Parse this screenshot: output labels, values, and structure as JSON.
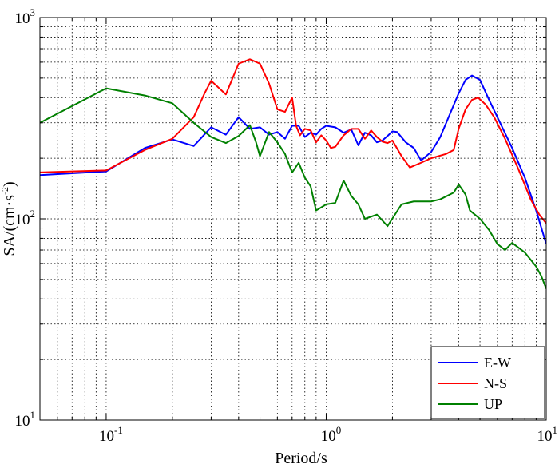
{
  "chart_data": {
    "type": "line",
    "xscale": "log",
    "yscale": "log",
    "xlim": [
      0.05,
      10
    ],
    "ylim": [
      10,
      1000
    ],
    "grid": true,
    "xlabel": "Period/s",
    "ylabel": "SA/(cm·s⁻²)",
    "ylabel_parts": {
      "prefix": "SA/(cm·s",
      "sup": "-2",
      "suffix": ")"
    },
    "xticks": [
      {
        "value": 0.1,
        "base": "10",
        "exp": "-1"
      },
      {
        "value": 1,
        "base": "10",
        "exp": "0"
      },
      {
        "value": 10,
        "base": "10",
        "exp": "1"
      }
    ],
    "yticks": [
      {
        "value": 10,
        "base": "10",
        "exp": "1"
      },
      {
        "value": 100,
        "base": "10",
        "exp": "2"
      },
      {
        "value": 1000,
        "base": "10",
        "exp": "3"
      }
    ],
    "legend_position": "bottom-right",
    "series": [
      {
        "name": "E-W",
        "color": "#0000ff",
        "points": [
          [
            0.05,
            165
          ],
          [
            0.1,
            172
          ],
          [
            0.15,
            225
          ],
          [
            0.2,
            248
          ],
          [
            0.25,
            230
          ],
          [
            0.3,
            285
          ],
          [
            0.35,
            262
          ],
          [
            0.4,
            320
          ],
          [
            0.45,
            280
          ],
          [
            0.5,
            285
          ],
          [
            0.55,
            262
          ],
          [
            0.6,
            270
          ],
          [
            0.65,
            250
          ],
          [
            0.7,
            290
          ],
          [
            0.75,
            290
          ],
          [
            0.8,
            255
          ],
          [
            0.85,
            268
          ],
          [
            0.9,
            262
          ],
          [
            0.95,
            280
          ],
          [
            1.0,
            290
          ],
          [
            1.1,
            285
          ],
          [
            1.2,
            268
          ],
          [
            1.3,
            278
          ],
          [
            1.4,
            232
          ],
          [
            1.5,
            268
          ],
          [
            1.6,
            260
          ],
          [
            1.7,
            240
          ],
          [
            1.8,
            245
          ],
          [
            1.9,
            258
          ],
          [
            2.0,
            272
          ],
          [
            2.1,
            270
          ],
          [
            2.3,
            240
          ],
          [
            2.5,
            225
          ],
          [
            2.7,
            195
          ],
          [
            3.0,
            215
          ],
          [
            3.3,
            255
          ],
          [
            3.6,
            320
          ],
          [
            4.0,
            420
          ],
          [
            4.3,
            490
          ],
          [
            4.6,
            515
          ],
          [
            5.0,
            490
          ],
          [
            5.5,
            390
          ],
          [
            6.0,
            320
          ],
          [
            7.0,
            225
          ],
          [
            8.0,
            160
          ],
          [
            9.0,
            110
          ],
          [
            10.0,
            75
          ]
        ]
      },
      {
        "name": "N-S",
        "color": "#ff0000",
        "points": [
          [
            0.05,
            170
          ],
          [
            0.1,
            174
          ],
          [
            0.15,
            220
          ],
          [
            0.2,
            250
          ],
          [
            0.25,
            320
          ],
          [
            0.28,
            420
          ],
          [
            0.3,
            485
          ],
          [
            0.35,
            415
          ],
          [
            0.4,
            590
          ],
          [
            0.45,
            620
          ],
          [
            0.5,
            590
          ],
          [
            0.55,
            470
          ],
          [
            0.6,
            350
          ],
          [
            0.65,
            340
          ],
          [
            0.7,
            400
          ],
          [
            0.73,
            290
          ],
          [
            0.76,
            260
          ],
          [
            0.8,
            280
          ],
          [
            0.85,
            275
          ],
          [
            0.9,
            240
          ],
          [
            0.95,
            260
          ],
          [
            1.0,
            245
          ],
          [
            1.05,
            225
          ],
          [
            1.1,
            228
          ],
          [
            1.2,
            260
          ],
          [
            1.3,
            280
          ],
          [
            1.4,
            280
          ],
          [
            1.5,
            250
          ],
          [
            1.6,
            275
          ],
          [
            1.7,
            255
          ],
          [
            1.8,
            242
          ],
          [
            1.9,
            238
          ],
          [
            2.0,
            245
          ],
          [
            2.2,
            205
          ],
          [
            2.4,
            180
          ],
          [
            2.7,
            190
          ],
          [
            3.0,
            200
          ],
          [
            3.5,
            210
          ],
          [
            3.8,
            220
          ],
          [
            4.0,
            280
          ],
          [
            4.3,
            350
          ],
          [
            4.6,
            390
          ],
          [
            4.9,
            400
          ],
          [
            5.3,
            370
          ],
          [
            5.8,
            320
          ],
          [
            6.5,
            250
          ],
          [
            7.5,
            175
          ],
          [
            8.5,
            125
          ],
          [
            9.3,
            105
          ],
          [
            10.0,
            95
          ]
        ]
      },
      {
        "name": "UP",
        "color": "#008000",
        "points": [
          [
            0.05,
            300
          ],
          [
            0.1,
            445
          ],
          [
            0.15,
            410
          ],
          [
            0.2,
            375
          ],
          [
            0.25,
            300
          ],
          [
            0.3,
            255
          ],
          [
            0.35,
            238
          ],
          [
            0.4,
            258
          ],
          [
            0.45,
            292
          ],
          [
            0.48,
            240
          ],
          [
            0.5,
            205
          ],
          [
            0.55,
            270
          ],
          [
            0.6,
            240
          ],
          [
            0.65,
            210
          ],
          [
            0.7,
            170
          ],
          [
            0.75,
            190
          ],
          [
            0.8,
            160
          ],
          [
            0.85,
            145
          ],
          [
            0.9,
            110
          ],
          [
            1.0,
            118
          ],
          [
            1.1,
            120
          ],
          [
            1.2,
            155
          ],
          [
            1.3,
            130
          ],
          [
            1.4,
            118
          ],
          [
            1.5,
            100
          ],
          [
            1.7,
            105
          ],
          [
            1.9,
            92
          ],
          [
            2.2,
            118
          ],
          [
            2.5,
            122
          ],
          [
            3.0,
            122
          ],
          [
            3.3,
            125
          ],
          [
            3.8,
            135
          ],
          [
            4.0,
            148
          ],
          [
            4.3,
            132
          ],
          [
            4.5,
            110
          ],
          [
            5.0,
            100
          ],
          [
            5.5,
            88
          ],
          [
            6.0,
            75
          ],
          [
            6.5,
            70
          ],
          [
            7.0,
            76
          ],
          [
            8.0,
            68
          ],
          [
            9.0,
            58
          ],
          [
            9.5,
            52
          ],
          [
            10.0,
            45
          ]
        ]
      }
    ]
  }
}
